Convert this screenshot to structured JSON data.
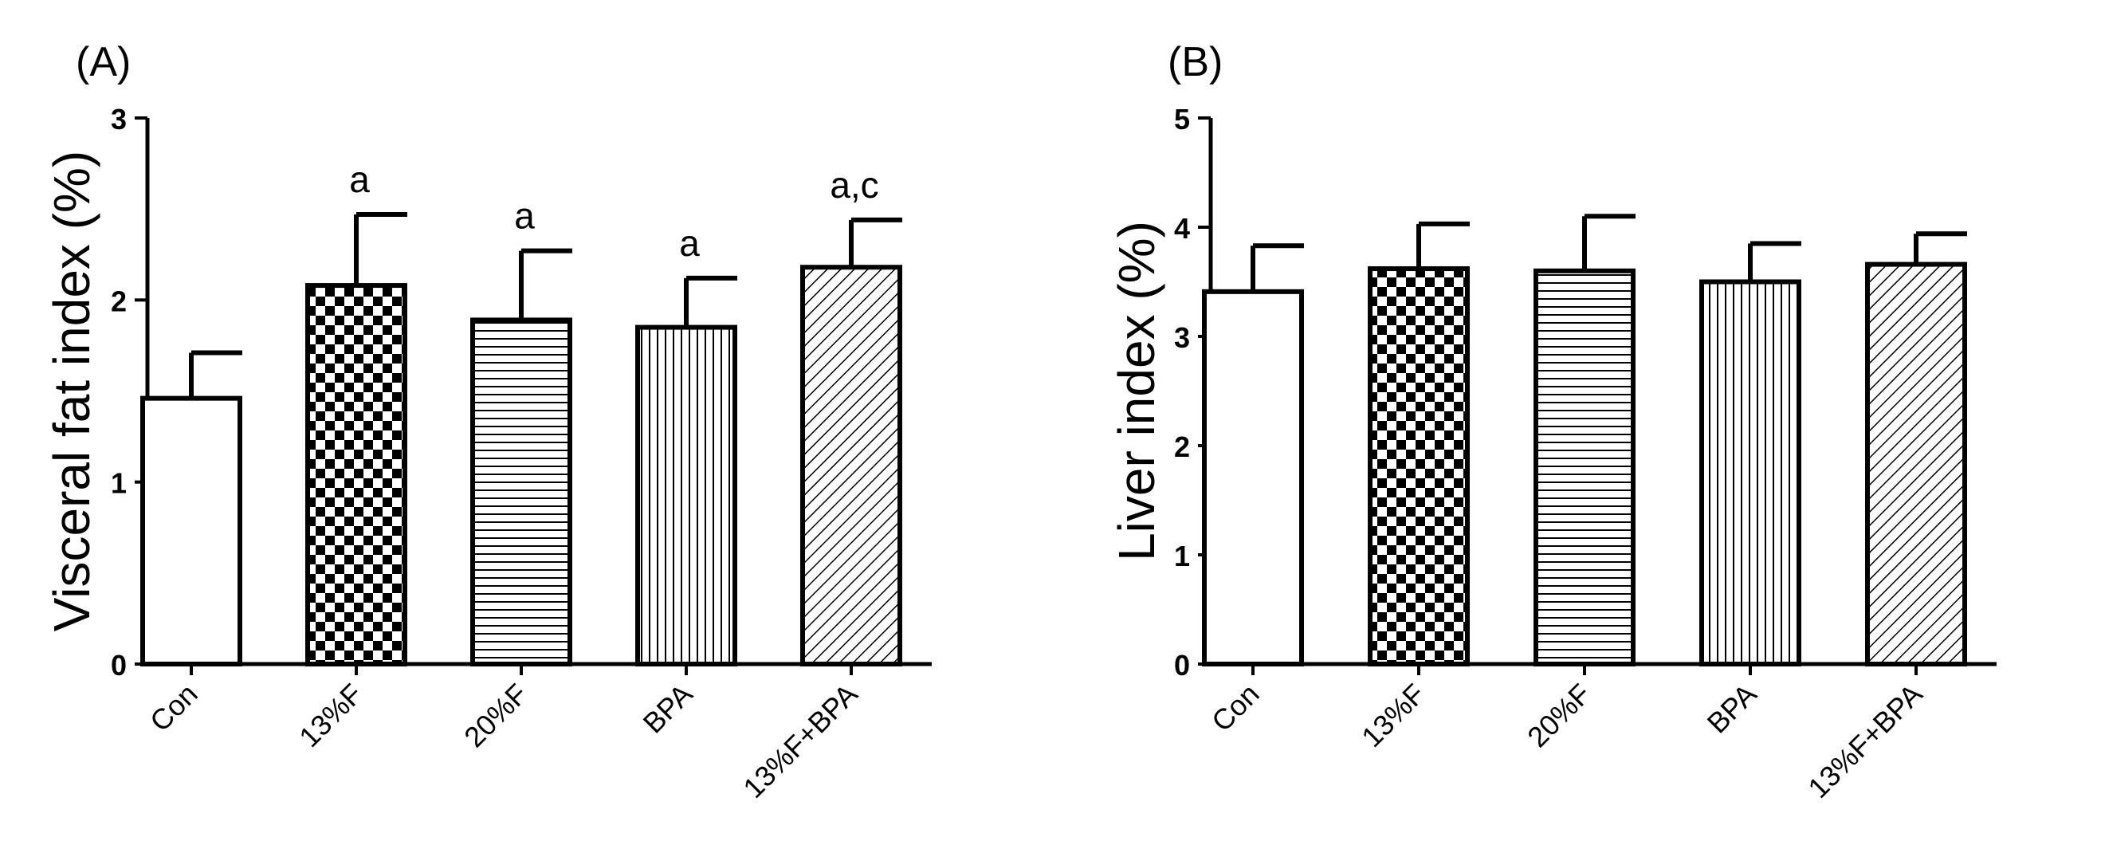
{
  "chart_data": [
    {
      "panel": "(A)",
      "type": "bar",
      "ylabel": "Visceral fat index (%)",
      "xlabel": "",
      "ylim": [
        0,
        3
      ],
      "yticks": [
        "0",
        "1",
        "2",
        "3"
      ],
      "categories": [
        "Con",
        "13%F",
        "20%F",
        "BPA",
        "13%F+BPA"
      ],
      "values": [
        1.46,
        2.08,
        1.89,
        1.85,
        2.18
      ],
      "errors": [
        0.25,
        0.39,
        0.38,
        0.27,
        0.26
      ],
      "annotations": [
        "",
        "a",
        "a",
        "a",
        "a,c"
      ]
    },
    {
      "panel": "(B)",
      "type": "bar",
      "ylabel": "Liver index (%)",
      "xlabel": "",
      "ylim": [
        0,
        5
      ],
      "yticks": [
        "0",
        "1",
        "2",
        "3",
        "4",
        "5"
      ],
      "categories": [
        "Con",
        "13%F",
        "20%F",
        "BPA",
        "13%F+BPA"
      ],
      "values": [
        3.41,
        3.62,
        3.6,
        3.5,
        3.66
      ],
      "errors": [
        0.42,
        0.41,
        0.5,
        0.35,
        0.28
      ],
      "annotations": [
        "",
        "",
        "",
        "",
        ""
      ]
    }
  ],
  "patterns": [
    "none",
    "checker",
    "horizontal-lines",
    "vertical-lines",
    "diagonal-lines"
  ]
}
